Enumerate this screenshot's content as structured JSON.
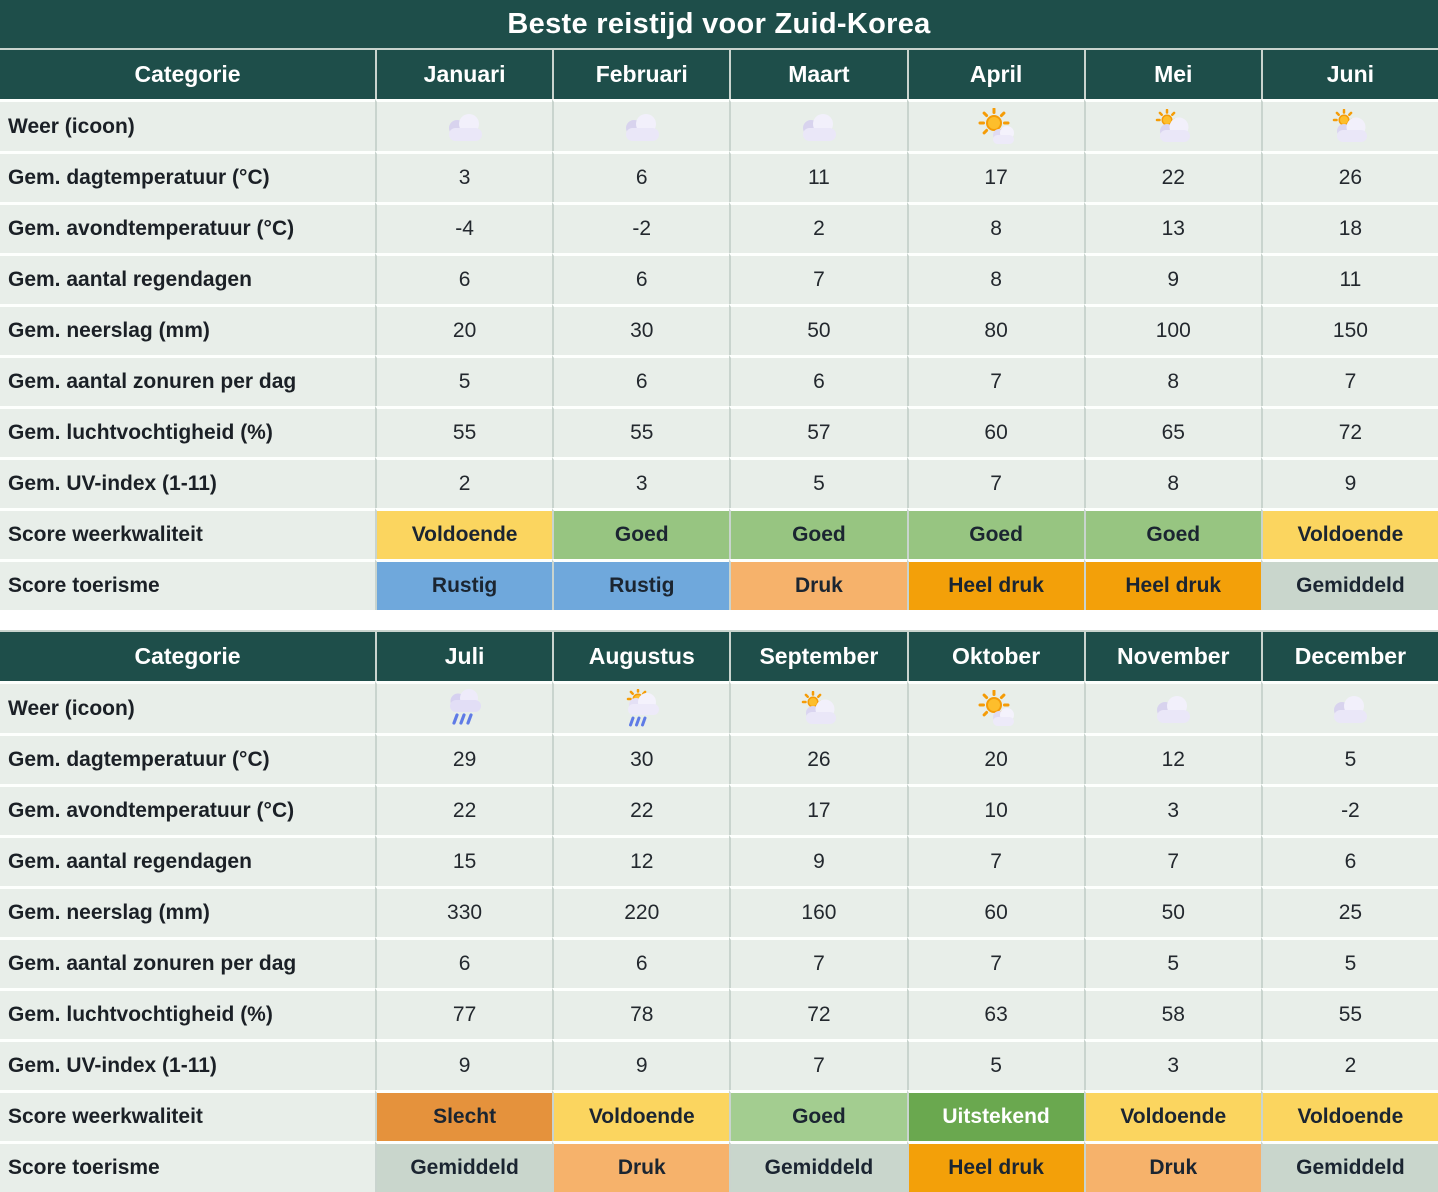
{
  "title": "Beste reistijd voor Zuid-Korea",
  "colors": {
    "header_bg": "#1E4E4A",
    "cell_bg": "#E8EEE9",
    "grid_v": "#C9D4CE",
    "grid_h": "#FDFFFD",
    "text": "#23282E",
    "score_voldoende": "#FBD55F",
    "score_goed": "#97C581",
    "score_uitstekend": "#6AA84F",
    "score_slecht": "#E5923C",
    "score_rustig": "#6FA8DC",
    "score_druk": "#F6B26B",
    "score_heel_druk": "#F3A009",
    "score_gemiddeld": "#C9D6CC"
  },
  "chart_data": {
    "type": "table",
    "title": "Beste reistijd voor Zuid-Korea",
    "column_header_label": "Categorie",
    "weather_row_label": "Weer (icoon)",
    "tables": [
      {
        "months": [
          "Januari",
          "Februari",
          "Maart",
          "April",
          "Mei",
          "Juni"
        ],
        "weather_icons": [
          "cloud-icon",
          "cloud-icon",
          "cloud-icon",
          "sun-cloud-icon",
          "sun-behind-cloud-icon",
          "sun-behind-cloud-icon"
        ],
        "rows": [
          {
            "label": "Gem. dagtemperatuur (°C)",
            "values": [
              "3",
              "6",
              "11",
              "17",
              "22",
              "26"
            ]
          },
          {
            "label": "Gem. avondtemperatuur (°C)",
            "values": [
              "-4",
              "-2",
              "2",
              "8",
              "13",
              "18"
            ]
          },
          {
            "label": "Gem. aantal regendagen",
            "values": [
              "6",
              "6",
              "7",
              "8",
              "9",
              "11"
            ]
          },
          {
            "label": "Gem. neerslag (mm)",
            "values": [
              "20",
              "30",
              "50",
              "80",
              "100",
              "150"
            ]
          },
          {
            "label": "Gem. aantal zonuren per dag",
            "values": [
              "5",
              "6",
              "6",
              "7",
              "8",
              "7"
            ]
          },
          {
            "label": "Gem. luchtvochtigheid (%)",
            "values": [
              "55",
              "55",
              "57",
              "60",
              "65",
              "72"
            ]
          },
          {
            "label": "Gem. UV-index (1-11)",
            "values": [
              "2",
              "3",
              "5",
              "7",
              "8",
              "9"
            ]
          }
        ],
        "score_rows": [
          {
            "label": "Score weerkwaliteit",
            "cells": [
              {
                "text": "Voldoende",
                "bg": "#FBD55F",
                "fg": "#1B2531"
              },
              {
                "text": "Goed",
                "bg": "#97C581",
                "fg": "#1B2531"
              },
              {
                "text": "Goed",
                "bg": "#97C581",
                "fg": "#1B2531"
              },
              {
                "text": "Goed",
                "bg": "#97C581",
                "fg": "#1B2531"
              },
              {
                "text": "Goed",
                "bg": "#97C581",
                "fg": "#1B2531"
              },
              {
                "text": "Voldoende",
                "bg": "#FBD55F",
                "fg": "#1B2531"
              }
            ]
          },
          {
            "label": "Score toerisme",
            "cells": [
              {
                "text": "Rustig",
                "bg": "#6FA8DC",
                "fg": "#1B2531"
              },
              {
                "text": "Rustig",
                "bg": "#6FA8DC",
                "fg": "#1B2531"
              },
              {
                "text": "Druk",
                "bg": "#F6B26B",
                "fg": "#1B2531"
              },
              {
                "text": "Heel druk",
                "bg": "#F3A009",
                "fg": "#1B2531"
              },
              {
                "text": "Heel druk",
                "bg": "#F3A009",
                "fg": "#1B2531"
              },
              {
                "text": "Gemiddeld",
                "bg": "#C9D6CC",
                "fg": "#1B2531"
              }
            ]
          }
        ]
      },
      {
        "months": [
          "Juli",
          "Augustus",
          "September",
          "Oktober",
          "November",
          "December"
        ],
        "weather_icons": [
          "rain-cloud-icon",
          "sun-rain-cloud-icon",
          "sun-behind-cloud-icon",
          "sun-cloud-icon",
          "cloud-icon",
          "cloud-icon"
        ],
        "rows": [
          {
            "label": "Gem. dagtemperatuur (°C)",
            "values": [
              "29",
              "30",
              "26",
              "20",
              "12",
              "5"
            ]
          },
          {
            "label": "Gem. avondtemperatuur (°C)",
            "values": [
              "22",
              "22",
              "17",
              "10",
              "3",
              "-2"
            ]
          },
          {
            "label": "Gem. aantal regendagen",
            "values": [
              "15",
              "12",
              "9",
              "7",
              "7",
              "6"
            ]
          },
          {
            "label": "Gem. neerslag (mm)",
            "values": [
              "330",
              "220",
              "160",
              "60",
              "50",
              "25"
            ]
          },
          {
            "label": "Gem. aantal zonuren per dag",
            "values": [
              "6",
              "6",
              "7",
              "7",
              "5",
              "5"
            ]
          },
          {
            "label": "Gem. luchtvochtigheid (%)",
            "values": [
              "77",
              "78",
              "72",
              "63",
              "58",
              "55"
            ]
          },
          {
            "label": "Gem. UV-index (1-11)",
            "values": [
              "9",
              "9",
              "7",
              "5",
              "3",
              "2"
            ]
          }
        ],
        "score_rows": [
          {
            "label": "Score weerkwaliteit",
            "cells": [
              {
                "text": "Slecht",
                "bg": "#E5923C",
                "fg": "#1B2531"
              },
              {
                "text": "Voldoende",
                "bg": "#FBD55F",
                "fg": "#1B2531"
              },
              {
                "text": "Goed",
                "bg": "#A3CD90",
                "fg": "#1B2531"
              },
              {
                "text": "Uitstekend",
                "bg": "#6AA84F",
                "fg": "#FFFFFF"
              },
              {
                "text": "Voldoende",
                "bg": "#FBD55F",
                "fg": "#1B2531"
              },
              {
                "text": "Voldoende",
                "bg": "#FBD55F",
                "fg": "#1B2531"
              }
            ]
          },
          {
            "label": "Score toerisme",
            "cells": [
              {
                "text": "Gemiddeld",
                "bg": "#C9D6CC",
                "fg": "#1B2531"
              },
              {
                "text": "Druk",
                "bg": "#F6B26B",
                "fg": "#1B2531"
              },
              {
                "text": "Gemiddeld",
                "bg": "#C9D6CC",
                "fg": "#1B2531"
              },
              {
                "text": "Heel druk",
                "bg": "#F3A009",
                "fg": "#1B2531"
              },
              {
                "text": "Druk",
                "bg": "#F6B26B",
                "fg": "#1B2531"
              },
              {
                "text": "Gemiddeld",
                "bg": "#C9D6CC",
                "fg": "#1B2531"
              }
            ]
          }
        ]
      }
    ]
  }
}
